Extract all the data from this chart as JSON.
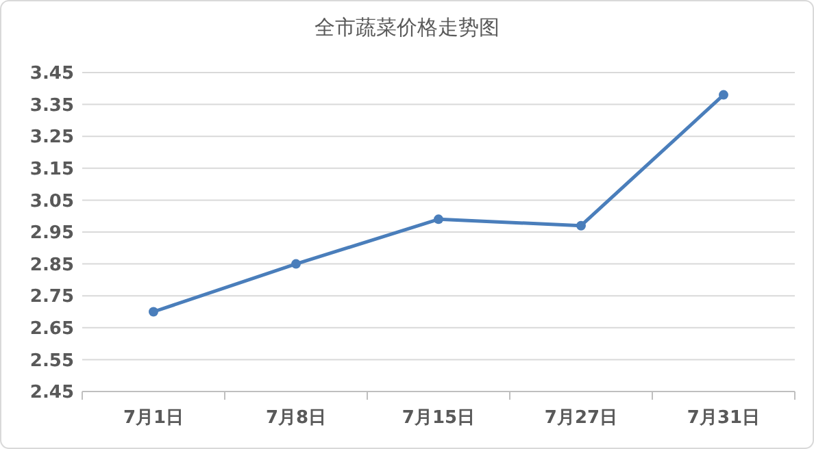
{
  "chart_data": {
    "type": "line",
    "title": "全市蔬菜价格走势图",
    "categories": [
      "7月1日",
      "7月8日",
      "7月15日",
      "7月27日",
      "7月31日"
    ],
    "series": [
      {
        "color": "#4a7ebb",
        "values": [
          2.7,
          2.85,
          2.99,
          2.97,
          3.38
        ]
      }
    ],
    "ylim": [
      2.45,
      3.45
    ],
    "yticks": [
      2.45,
      2.55,
      2.65,
      2.75,
      2.85,
      2.95,
      3.05,
      3.15,
      3.25,
      3.35,
      3.45
    ],
    "grid": "y",
    "marker": "circle"
  }
}
